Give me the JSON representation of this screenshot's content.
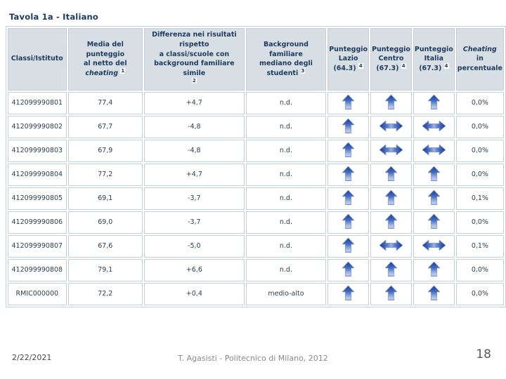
{
  "slide": {
    "title": "Tavola 1a - Italiano",
    "footer": {
      "date": "2/22/2021",
      "credit": "T. Agasisti - Politecnico di Milano, 2012",
      "page": "18"
    }
  },
  "colors": {
    "header_background": "#d8dfe4",
    "header_text": "#1d3a5f",
    "cell_text": "#31404d",
    "border": "#c4cfd7",
    "arrow_blue_dark": "#1b3e9e",
    "arrow_blue_light": "#a3b8e4"
  },
  "icons": {
    "arrow-up": "blue block arrow pointing up (score above benchmark)",
    "arrow-left-right": "blue double-headed horizontal arrow (score in line with benchmark)"
  },
  "table": {
    "columns": [
      {
        "name": "classi-istituto",
        "parts": [
          {
            "t": "Classi/Istituto"
          }
        ]
      },
      {
        "name": "media-punteggio",
        "parts": [
          {
            "t": "Media del punteggio"
          },
          {
            "br": 1
          },
          {
            "t": "al netto del"
          },
          {
            "br": 1
          },
          {
            "t": "cheating",
            "i": 1
          },
          {
            "t": " "
          },
          {
            "t": "1",
            "sup": 1
          }
        ]
      },
      {
        "name": "differenza-risultati",
        "parts": [
          {
            "t": "Differenza nei risultati"
          },
          {
            "br": 1
          },
          {
            "t": "rispetto"
          },
          {
            "br": 1
          },
          {
            "t": "a classi/scuole con"
          },
          {
            "br": 1
          },
          {
            "t": "background familiare simile"
          },
          {
            "br": 1
          },
          {
            "t": "2",
            "sup": 1
          }
        ]
      },
      {
        "name": "background-familiare",
        "parts": [
          {
            "t": "Background familiare"
          },
          {
            "br": 1
          },
          {
            "t": "mediano degli"
          },
          {
            "br": 1
          },
          {
            "t": "studenti "
          },
          {
            "t": "3",
            "sup": 1
          }
        ]
      },
      {
        "name": "punteggio-lazio",
        "parts": [
          {
            "t": "Punteggio"
          },
          {
            "br": 1
          },
          {
            "t": "Lazio"
          },
          {
            "br": 1
          },
          {
            "t": "(64.3) "
          },
          {
            "t": "4",
            "sup": 1
          }
        ]
      },
      {
        "name": "punteggio-centro",
        "parts": [
          {
            "t": "Punteggio"
          },
          {
            "br": 1
          },
          {
            "t": "Centro"
          },
          {
            "br": 1
          },
          {
            "t": "(67.3) "
          },
          {
            "t": "4",
            "sup": 1
          }
        ]
      },
      {
        "name": "punteggio-italia",
        "parts": [
          {
            "t": "Punteggio"
          },
          {
            "br": 1
          },
          {
            "t": "Italia"
          },
          {
            "br": 1
          },
          {
            "t": "(67.3) "
          },
          {
            "t": "4",
            "sup": 1
          }
        ]
      },
      {
        "name": "cheating-percentuale",
        "parts": [
          {
            "t": "Cheating",
            "i": 1
          },
          {
            "br": 1
          },
          {
            "t": "in"
          },
          {
            "br": 1
          },
          {
            "t": "percentuale"
          }
        ]
      }
    ],
    "rows": [
      {
        "cells": [
          {
            "v": "412099990801"
          },
          {
            "v": "77,4"
          },
          {
            "v": "+4,7"
          },
          {
            "v": "n.d."
          },
          {
            "icon": "arrow-up"
          },
          {
            "icon": "arrow-up"
          },
          {
            "icon": "arrow-up"
          },
          {
            "v": "0,0%"
          }
        ]
      },
      {
        "cells": [
          {
            "v": "412099990802"
          },
          {
            "v": "67,7"
          },
          {
            "v": "-4,8"
          },
          {
            "v": "n.d."
          },
          {
            "icon": "arrow-up"
          },
          {
            "icon": "arrow-left-right"
          },
          {
            "icon": "arrow-left-right"
          },
          {
            "v": "0,0%"
          }
        ]
      },
      {
        "cells": [
          {
            "v": "412099990803"
          },
          {
            "v": "67,9"
          },
          {
            "v": "-4,8"
          },
          {
            "v": "n.d."
          },
          {
            "icon": "arrow-up"
          },
          {
            "icon": "arrow-left-right"
          },
          {
            "icon": "arrow-left-right"
          },
          {
            "v": "0,0%"
          }
        ]
      },
      {
        "cells": [
          {
            "v": "412099990804"
          },
          {
            "v": "77,2"
          },
          {
            "v": "+4,7"
          },
          {
            "v": "n.d."
          },
          {
            "icon": "arrow-up"
          },
          {
            "icon": "arrow-up"
          },
          {
            "icon": "arrow-up"
          },
          {
            "v": "0,0%"
          }
        ]
      },
      {
        "cells": [
          {
            "v": "412099990805"
          },
          {
            "v": "69,1"
          },
          {
            "v": "-3,7"
          },
          {
            "v": "n.d."
          },
          {
            "icon": "arrow-up"
          },
          {
            "icon": "arrow-up"
          },
          {
            "icon": "arrow-up"
          },
          {
            "v": "0,1%"
          }
        ]
      },
      {
        "cells": [
          {
            "v": "412099990806"
          },
          {
            "v": "69,0"
          },
          {
            "v": "-3,7"
          },
          {
            "v": "n.d."
          },
          {
            "icon": "arrow-up"
          },
          {
            "icon": "arrow-up"
          },
          {
            "icon": "arrow-up"
          },
          {
            "v": "0,0%"
          }
        ]
      },
      {
        "cells": [
          {
            "v": "412099990807"
          },
          {
            "v": "67,6"
          },
          {
            "v": "-5,0"
          },
          {
            "v": "n.d."
          },
          {
            "icon": "arrow-up"
          },
          {
            "icon": "arrow-left-right"
          },
          {
            "icon": "arrow-left-right"
          },
          {
            "v": "0,1%"
          }
        ]
      },
      {
        "cells": [
          {
            "v": "412099990808"
          },
          {
            "v": "79,1"
          },
          {
            "v": "+6,6"
          },
          {
            "v": "n.d."
          },
          {
            "icon": "arrow-up"
          },
          {
            "icon": "arrow-up"
          },
          {
            "icon": "arrow-up"
          },
          {
            "v": "0,0%"
          }
        ]
      },
      {
        "cells": [
          {
            "v": "RMIC000000"
          },
          {
            "v": "72,2"
          },
          {
            "v": "+0,4"
          },
          {
            "v": "medio-alto"
          },
          {
            "icon": "arrow-up"
          },
          {
            "icon": "arrow-up"
          },
          {
            "icon": "arrow-up"
          },
          {
            "v": "0,0%"
          }
        ]
      }
    ]
  }
}
